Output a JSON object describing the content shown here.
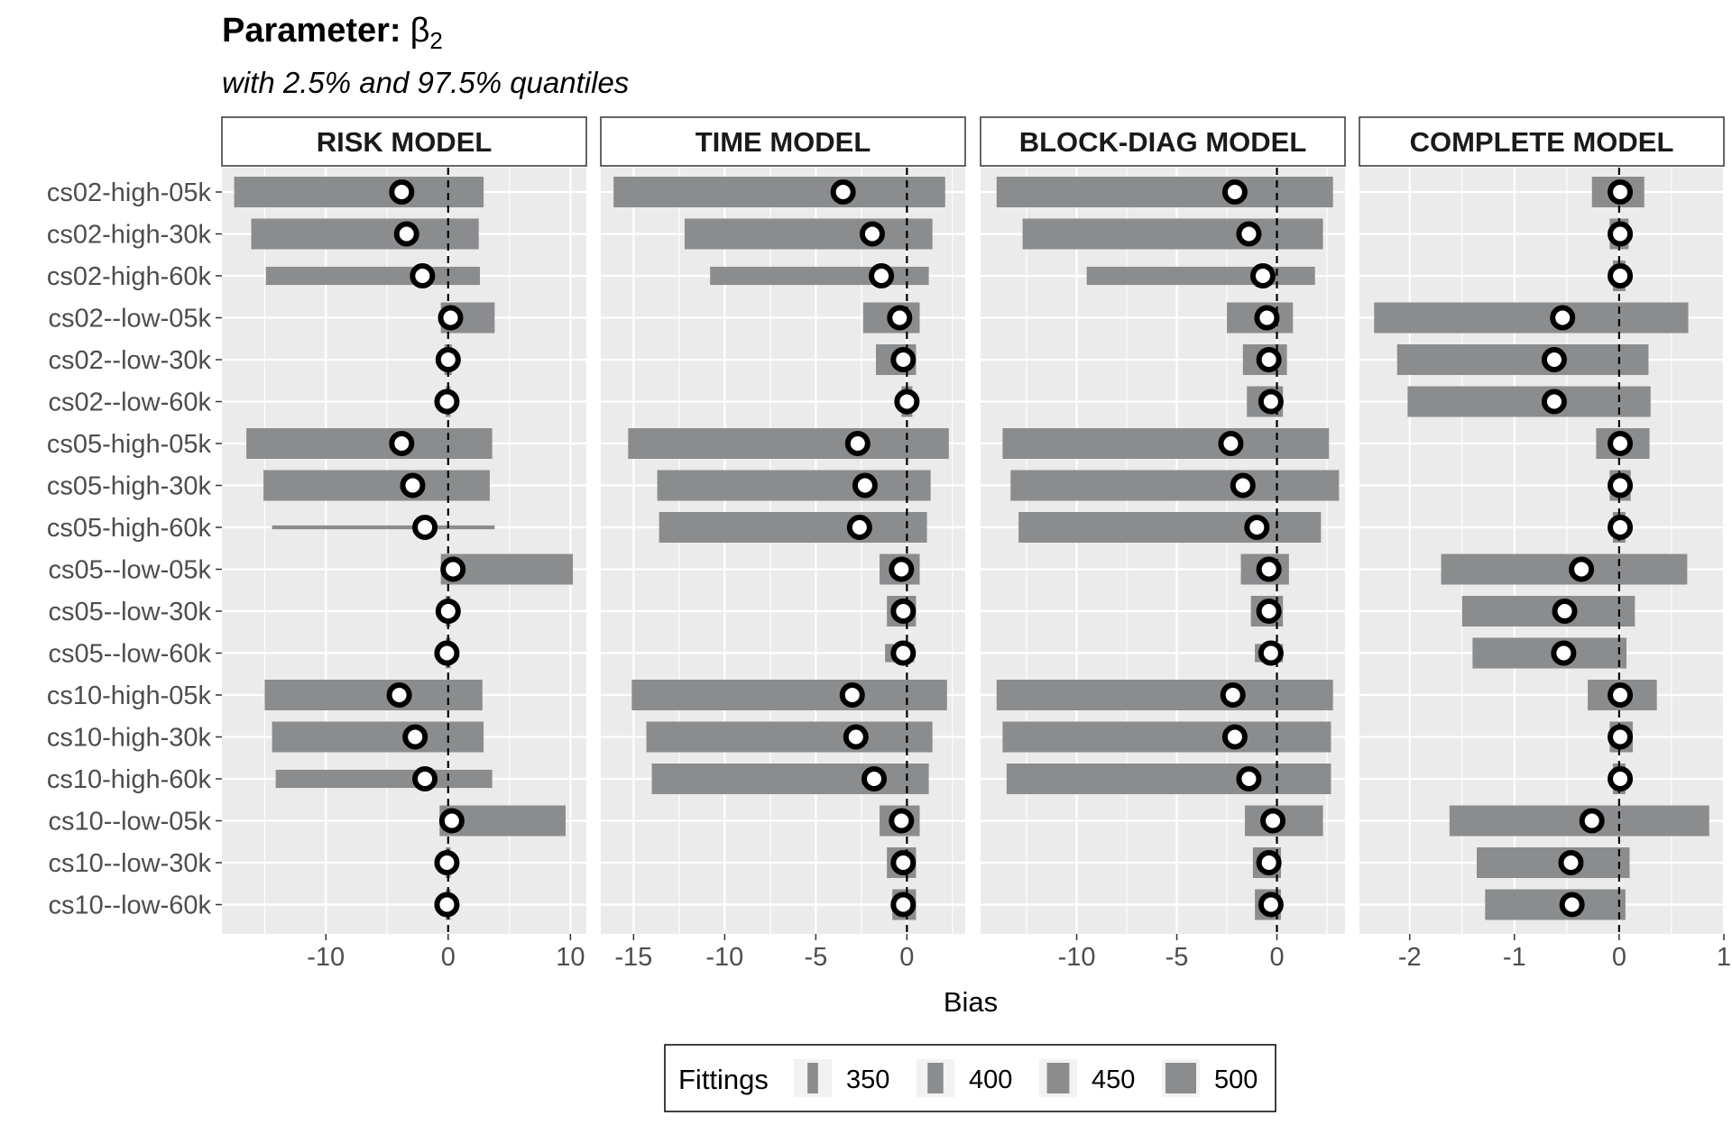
{
  "title": "Parameter:",
  "title_symbol": "β",
  "title_subscript": "2",
  "subtitle": "with 2.5% and 97.5% quantiles",
  "chart_data": {
    "type": "interval",
    "xlabel": "Bias",
    "categories": [
      "cs02-high-05k",
      "cs02-high-30k",
      "cs02-high-60k",
      "cs02--low-05k",
      "cs02--low-30k",
      "cs02--low-60k",
      "cs05-high-05k",
      "cs05-high-30k",
      "cs05-high-60k",
      "cs05--low-05k",
      "cs05--low-30k",
      "cs05--low-60k",
      "cs10-high-05k",
      "cs10-high-30k",
      "cs10-high-60k",
      "cs10--low-05k",
      "cs10--low-30k",
      "cs10--low-60k"
    ],
    "reference_line": 0,
    "colors": {
      "bar": "#8a8c8e",
      "panel_bg": "#ebebeb",
      "grid": "#ffffff",
      "point_stroke": "#000000",
      "point_fill": "#ffffff"
    },
    "legend": {
      "title": "Fittings",
      "entries": [
        {
          "label": "350",
          "value": 350
        },
        {
          "label": "400",
          "value": 400
        },
        {
          "label": "450",
          "value": 450
        },
        {
          "label": "500",
          "value": 500
        }
      ]
    },
    "panels": [
      {
        "name": "RISK MODEL",
        "xlim": [
          -18.5,
          11.3
        ],
        "ticks": [
          -10,
          0,
          10
        ],
        "tick_labels": [
          "-10",
          "0",
          "10"
        ],
        "rows": [
          {
            "low": -17.5,
            "high": 2.9,
            "point": -3.8,
            "fittings": 500
          },
          {
            "low": -16.1,
            "high": 2.5,
            "point": -3.4,
            "fittings": 500
          },
          {
            "low": -14.9,
            "high": 2.6,
            "point": -2.1,
            "fittings": 420
          },
          {
            "low": -0.6,
            "high": 3.8,
            "point": 0.2,
            "fittings": 500
          },
          {
            "low": -0.3,
            "high": 0.3,
            "point": 0.0,
            "fittings": 500
          },
          {
            "low": -0.2,
            "high": 0.2,
            "point": -0.1,
            "fittings": 500
          },
          {
            "low": -16.5,
            "high": 3.6,
            "point": -3.8,
            "fittings": 500
          },
          {
            "low": -15.1,
            "high": 3.4,
            "point": -2.9,
            "fittings": 500
          },
          {
            "low": -14.4,
            "high": 3.8,
            "point": -1.9,
            "fittings": 250
          },
          {
            "low": -0.6,
            "high": 10.2,
            "point": 0.4,
            "fittings": 500
          },
          {
            "low": -0.2,
            "high": 0.2,
            "point": 0.0,
            "fittings": 500
          },
          {
            "low": -0.2,
            "high": 0.2,
            "point": -0.1,
            "fittings": 500
          },
          {
            "low": -15.0,
            "high": 2.8,
            "point": -4.0,
            "fittings": 500
          },
          {
            "low": -14.4,
            "high": 2.9,
            "point": -2.7,
            "fittings": 500
          },
          {
            "low": -14.1,
            "high": 3.6,
            "point": -1.9,
            "fittings": 420
          },
          {
            "low": -0.7,
            "high": 9.6,
            "point": 0.3,
            "fittings": 500
          },
          {
            "low": -0.2,
            "high": 0.2,
            "point": -0.1,
            "fittings": 500
          },
          {
            "low": -0.2,
            "high": 0.2,
            "point": -0.1,
            "fittings": 500
          }
        ]
      },
      {
        "name": "TIME MODEL",
        "xlim": [
          -16.8,
          3.2
        ],
        "ticks": [
          -15,
          -10,
          -5,
          0
        ],
        "tick_labels": [
          "-15",
          "-10",
          "-5",
          "0"
        ],
        "rows": [
          {
            "low": -16.1,
            "high": 2.1,
            "point": -3.5,
            "fittings": 500
          },
          {
            "low": -12.2,
            "high": 1.4,
            "point": -1.9,
            "fittings": 500
          },
          {
            "low": -10.8,
            "high": 1.2,
            "point": -1.4,
            "fittings": 420
          },
          {
            "low": -2.4,
            "high": 0.7,
            "point": -0.4,
            "fittings": 500
          },
          {
            "low": -1.7,
            "high": 0.5,
            "point": -0.2,
            "fittings": 500
          },
          {
            "low": -0.3,
            "high": 0.3,
            "point": 0.0,
            "fittings": 500
          },
          {
            "low": -15.3,
            "high": 2.3,
            "point": -2.7,
            "fittings": 500
          },
          {
            "low": -13.7,
            "high": 1.3,
            "point": -2.3,
            "fittings": 500
          },
          {
            "low": -13.6,
            "high": 1.1,
            "point": -2.6,
            "fittings": 500
          },
          {
            "low": -1.5,
            "high": 0.7,
            "point": -0.3,
            "fittings": 500
          },
          {
            "low": -1.1,
            "high": 0.5,
            "point": -0.2,
            "fittings": 500
          },
          {
            "low": -1.2,
            "high": 0.4,
            "point": -0.2,
            "fittings": 420
          },
          {
            "low": -15.1,
            "high": 2.2,
            "point": -3.0,
            "fittings": 500
          },
          {
            "low": -14.3,
            "high": 1.4,
            "point": -2.8,
            "fittings": 500
          },
          {
            "low": -14.0,
            "high": 1.2,
            "point": -1.8,
            "fittings": 500
          },
          {
            "low": -1.5,
            "high": 0.7,
            "point": -0.3,
            "fittings": 500
          },
          {
            "low": -1.1,
            "high": 0.5,
            "point": -0.2,
            "fittings": 500
          },
          {
            "low": -0.8,
            "high": 0.5,
            "point": -0.2,
            "fittings": 500
          }
        ]
      },
      {
        "name": "BLOCK-DIAG MODEL",
        "xlim": [
          -14.8,
          3.4
        ],
        "ticks": [
          -10,
          -5,
          0
        ],
        "tick_labels": [
          "-10",
          "-5",
          "0"
        ],
        "rows": [
          {
            "low": -14.0,
            "high": 2.8,
            "point": -2.1,
            "fittings": 500
          },
          {
            "low": -12.7,
            "high": 2.3,
            "point": -1.4,
            "fittings": 500
          },
          {
            "low": -9.5,
            "high": 1.9,
            "point": -0.7,
            "fittings": 420
          },
          {
            "low": -2.5,
            "high": 0.8,
            "point": -0.5,
            "fittings": 500
          },
          {
            "low": -1.7,
            "high": 0.5,
            "point": -0.4,
            "fittings": 500
          },
          {
            "low": -1.5,
            "high": 0.3,
            "point": -0.3,
            "fittings": 500
          },
          {
            "low": -13.7,
            "high": 2.6,
            "point": -2.3,
            "fittings": 500
          },
          {
            "low": -13.3,
            "high": 3.1,
            "point": -1.7,
            "fittings": 500
          },
          {
            "low": -12.9,
            "high": 2.2,
            "point": -1.0,
            "fittings": 500
          },
          {
            "low": -1.8,
            "high": 0.6,
            "point": -0.4,
            "fittings": 500
          },
          {
            "low": -1.3,
            "high": 0.3,
            "point": -0.4,
            "fittings": 500
          },
          {
            "low": -1.1,
            "high": 0.3,
            "point": -0.3,
            "fittings": 420
          },
          {
            "low": -14.0,
            "high": 2.8,
            "point": -2.2,
            "fittings": 500
          },
          {
            "low": -13.7,
            "high": 2.7,
            "point": -2.1,
            "fittings": 500
          },
          {
            "low": -13.5,
            "high": 2.7,
            "point": -1.4,
            "fittings": 500
          },
          {
            "low": -1.6,
            "high": 2.3,
            "point": -0.2,
            "fittings": 500
          },
          {
            "low": -1.2,
            "high": 0.2,
            "point": -0.4,
            "fittings": 500
          },
          {
            "low": -1.1,
            "high": 0.2,
            "point": -0.3,
            "fittings": 500
          }
        ]
      },
      {
        "name": "COMPLETE MODEL",
        "xlim": [
          -2.48,
          1.0
        ],
        "ticks": [
          -2,
          -1,
          0,
          1
        ],
        "tick_labels": [
          "-2",
          "-1",
          "0",
          "1"
        ],
        "rows": [
          {
            "low": -0.26,
            "high": 0.24,
            "point": 0.01,
            "fittings": 500
          },
          {
            "low": -0.09,
            "high": 0.09,
            "point": 0.01,
            "fittings": 500
          },
          {
            "low": -0.06,
            "high": 0.06,
            "point": 0.01,
            "fittings": 500
          },
          {
            "low": -2.34,
            "high": 0.66,
            "point": -0.54,
            "fittings": 500
          },
          {
            "low": -2.12,
            "high": 0.28,
            "point": -0.62,
            "fittings": 500
          },
          {
            "low": -2.02,
            "high": 0.3,
            "point": -0.62,
            "fittings": 500
          },
          {
            "low": -0.22,
            "high": 0.29,
            "point": 0.01,
            "fittings": 500
          },
          {
            "low": -0.09,
            "high": 0.11,
            "point": 0.01,
            "fittings": 500
          },
          {
            "low": -0.06,
            "high": 0.06,
            "point": 0.01,
            "fittings": 500
          },
          {
            "low": -1.7,
            "high": 0.65,
            "point": -0.36,
            "fittings": 500
          },
          {
            "low": -1.5,
            "high": 0.15,
            "point": -0.52,
            "fittings": 500
          },
          {
            "low": -1.4,
            "high": 0.07,
            "point": -0.53,
            "fittings": 500
          },
          {
            "low": -0.3,
            "high": 0.36,
            "point": 0.01,
            "fittings": 500
          },
          {
            "low": -0.09,
            "high": 0.13,
            "point": 0.01,
            "fittings": 500
          },
          {
            "low": -0.06,
            "high": 0.06,
            "point": 0.01,
            "fittings": 500
          },
          {
            "low": -1.62,
            "high": 0.86,
            "point": -0.26,
            "fittings": 500
          },
          {
            "low": -1.36,
            "high": 0.1,
            "point": -0.46,
            "fittings": 500
          },
          {
            "low": -1.28,
            "high": 0.06,
            "point": -0.45,
            "fittings": 500
          }
        ]
      }
    ]
  }
}
